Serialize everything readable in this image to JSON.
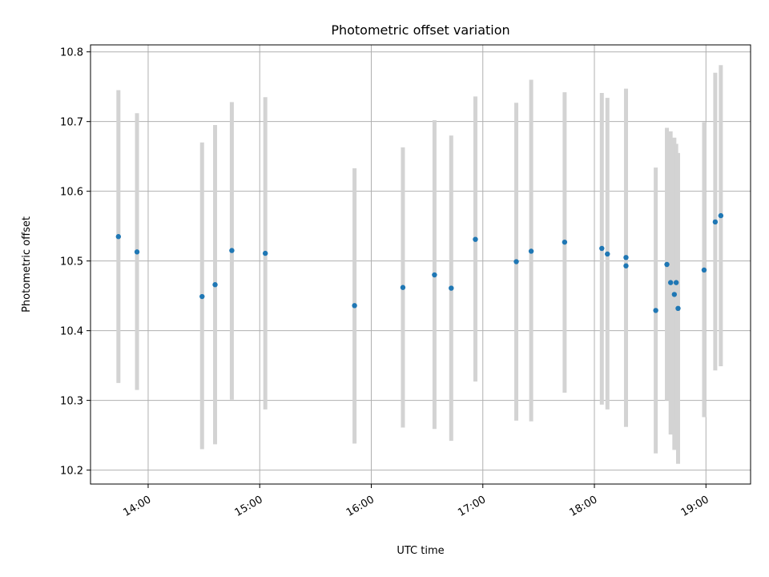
{
  "chart_data": {
    "type": "scatter",
    "title": "Photometric offset variation",
    "xlabel": "UTC time",
    "ylabel": "Photometric offset",
    "x_axis": "time",
    "xlim": [
      "13:29",
      "19:24"
    ],
    "ylim": [
      10.18,
      10.81
    ],
    "grid": true,
    "x_ticks": [
      "14:00",
      "15:00",
      "16:00",
      "17:00",
      "18:00",
      "19:00"
    ],
    "y_ticks": [
      10.2,
      10.3,
      10.4,
      10.5,
      10.6,
      10.7,
      10.8
    ],
    "marker_color": "#1f77b4",
    "errorbar_color": "#d3d3d3",
    "points": [
      {
        "x": "13:44",
        "y": 10.535,
        "lo": 10.325,
        "hi": 10.745
      },
      {
        "x": "13:54",
        "y": 10.513,
        "lo": 10.315,
        "hi": 10.712
      },
      {
        "x": "14:29",
        "y": 10.449,
        "lo": 10.23,
        "hi": 10.67
      },
      {
        "x": "14:36",
        "y": 10.466,
        "lo": 10.237,
        "hi": 10.695
      },
      {
        "x": "14:45",
        "y": 10.515,
        "lo": 10.301,
        "hi": 10.728
      },
      {
        "x": "15:03",
        "y": 10.511,
        "lo": 10.287,
        "hi": 10.735
      },
      {
        "x": "15:51",
        "y": 10.436,
        "lo": 10.238,
        "hi": 10.633
      },
      {
        "x": "16:17",
        "y": 10.462,
        "lo": 10.261,
        "hi": 10.663
      },
      {
        "x": "16:34",
        "y": 10.48,
        "lo": 10.259,
        "hi": 10.702
      },
      {
        "x": "16:43",
        "y": 10.461,
        "lo": 10.242,
        "hi": 10.68
      },
      {
        "x": "16:56",
        "y": 10.531,
        "lo": 10.327,
        "hi": 10.736
      },
      {
        "x": "17:18",
        "y": 10.499,
        "lo": 10.271,
        "hi": 10.727
      },
      {
        "x": "17:26",
        "y": 10.514,
        "lo": 10.27,
        "hi": 10.76
      },
      {
        "x": "17:44",
        "y": 10.527,
        "lo": 10.311,
        "hi": 10.742
      },
      {
        "x": "18:04",
        "y": 10.518,
        "lo": 10.294,
        "hi": 10.741
      },
      {
        "x": "18:07",
        "y": 10.51,
        "lo": 10.287,
        "hi": 10.734
      },
      {
        "x": "18:17",
        "y": 10.505,
        "lo": 10.262,
        "hi": 10.747
      },
      {
        "x": "18:17",
        "y": 10.493,
        "lo": 10.262,
        "hi": 10.747
      },
      {
        "x": "18:33",
        "y": 10.429,
        "lo": 10.224,
        "hi": 10.634
      },
      {
        "x": "18:39",
        "y": 10.495,
        "lo": 10.3,
        "hi": 10.691
      },
      {
        "x": "18:41",
        "y": 10.469,
        "lo": 10.251,
        "hi": 10.686
      },
      {
        "x": "18:43",
        "y": 10.452,
        "lo": 10.229,
        "hi": 10.677
      },
      {
        "x": "18:44",
        "y": 10.469,
        "lo": 10.271,
        "hi": 10.668
      },
      {
        "x": "18:45",
        "y": 10.432,
        "lo": 10.209,
        "hi": 10.655
      },
      {
        "x": "18:59",
        "y": 10.487,
        "lo": 10.276,
        "hi": 10.699
      },
      {
        "x": "19:05",
        "y": 10.556,
        "lo": 10.343,
        "hi": 10.77
      },
      {
        "x": "19:08",
        "y": 10.565,
        "lo": 10.349,
        "hi": 10.781
      }
    ]
  }
}
